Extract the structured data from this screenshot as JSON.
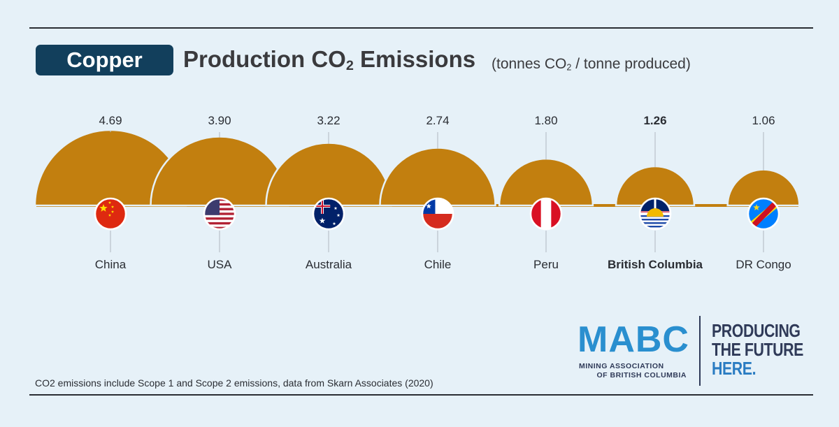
{
  "header": {
    "pill_label": "Copper",
    "title_main": "Production CO",
    "title_sub": "2",
    "title_end": " Emissions",
    "unit_start": "(tonnes CO",
    "unit_sub": "2",
    "unit_end": " / tonne produced)"
  },
  "chart_data": {
    "type": "bar",
    "mark": "semicircle",
    "categories": [
      "China",
      "USA",
      "Australia",
      "Chile",
      "Peru",
      "British Columbia",
      "DR Congo"
    ],
    "values": [
      4.69,
      3.9,
      3.22,
      2.74,
      1.8,
      1.26,
      1.06
    ],
    "value_labels": [
      "4.69",
      "3.90",
      "3.22",
      "2.74",
      "1.80",
      "1.26",
      "1.06"
    ],
    "highlight": "British Columbia",
    "ylabel": "(tonnes CO₂ / tonne produced)",
    "title": "Production CO₂ Emissions",
    "icons": [
      "china-flag-icon",
      "usa-flag-icon",
      "australia-flag-icon",
      "chile-flag-icon",
      "peru-flag-icon",
      "british-columbia-flag-icon",
      "dr-congo-flag-icon"
    ]
  },
  "footnote": "CO2 emissions include Scope 1 and Scope 2 emissions, data from Skarn Associates (2020)",
  "logo": {
    "mark": "MABC",
    "sub_line1": "MINING ASSOCIATION",
    "sub_line2": "OF BRITISH COLUMBIA"
  },
  "tagline": {
    "line1": "PRODUCING",
    "line2": "THE FUTURE",
    "line3": "HERE."
  },
  "colors": {
    "background": "#e6f1f8",
    "copper": "#c27f0f",
    "pill": "#123f5c",
    "logo_blue": "#2a8fcf",
    "navy": "#2f3a58",
    "tagline_blue": "#2a7cc2",
    "text": "#3a3a3d"
  }
}
